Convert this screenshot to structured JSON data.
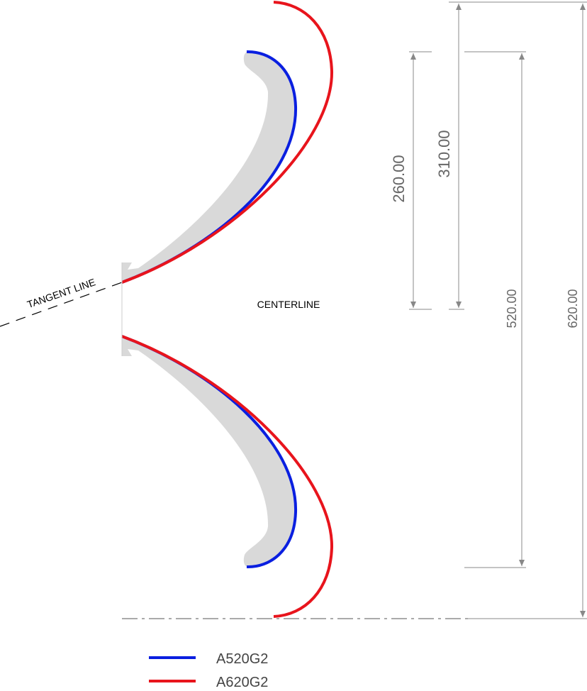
{
  "labels": {
    "tangent_line": "TANGENT LINE",
    "centerline": "CENTERLINE"
  },
  "dimensions": [
    "260.00",
    "310.00",
    "520.00",
    "620.00"
  ],
  "legend": [
    {
      "name": "A520G2",
      "color": "#0a1fe0"
    },
    {
      "name": "A620G2",
      "color": "#e8141c"
    }
  ]
}
